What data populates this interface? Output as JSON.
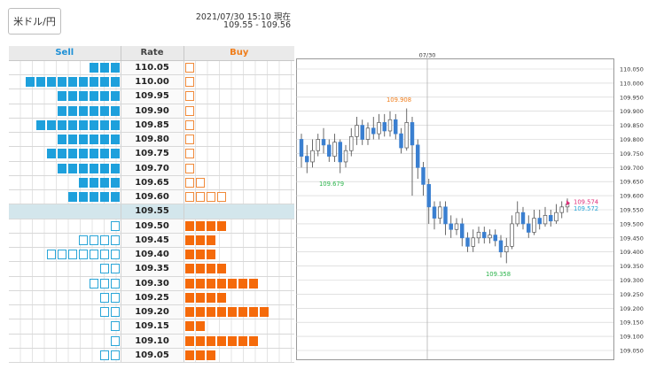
{
  "pair_button": "米ドル/円",
  "timestamp": "2021/07/30 15:10 現在",
  "bid_ask": "109.55 - 109.56",
  "order_book": {
    "headers": {
      "sell": "Sell",
      "rate": "Rate",
      "buy": "Buy"
    },
    "current_rate": "109.55",
    "rows": [
      {
        "rate": "110.05",
        "sell": {
          "fill": 3,
          "empty": 0
        },
        "buy": {
          "fill": 0,
          "empty": 1
        }
      },
      {
        "rate": "110.00",
        "sell": {
          "fill": 9,
          "empty": 0
        },
        "buy": {
          "fill": 0,
          "empty": 1
        }
      },
      {
        "rate": "109.95",
        "sell": {
          "fill": 6,
          "empty": 0
        },
        "buy": {
          "fill": 0,
          "empty": 1
        }
      },
      {
        "rate": "109.90",
        "sell": {
          "fill": 6,
          "empty": 0
        },
        "buy": {
          "fill": 0,
          "empty": 1
        }
      },
      {
        "rate": "109.85",
        "sell": {
          "fill": 8,
          "empty": 0
        },
        "buy": {
          "fill": 0,
          "empty": 1
        }
      },
      {
        "rate": "109.80",
        "sell": {
          "fill": 6,
          "empty": 0
        },
        "buy": {
          "fill": 0,
          "empty": 1
        }
      },
      {
        "rate": "109.75",
        "sell": {
          "fill": 7,
          "empty": 0
        },
        "buy": {
          "fill": 0,
          "empty": 1
        }
      },
      {
        "rate": "109.70",
        "sell": {
          "fill": 6,
          "empty": 0
        },
        "buy": {
          "fill": 0,
          "empty": 1
        }
      },
      {
        "rate": "109.65",
        "sell": {
          "fill": 4,
          "empty": 0
        },
        "buy": {
          "fill": 0,
          "empty": 2
        }
      },
      {
        "rate": "109.60",
        "sell": {
          "fill": 5,
          "empty": 0
        },
        "buy": {
          "fill": 0,
          "empty": 4
        }
      },
      {
        "rate": "109.55",
        "sell": {
          "fill": 0,
          "empty": 0
        },
        "buy": {
          "fill": 0,
          "empty": 0
        }
      },
      {
        "rate": "109.50",
        "sell": {
          "fill": 0,
          "empty": 1
        },
        "buy": {
          "fill": 4,
          "empty": 0
        }
      },
      {
        "rate": "109.45",
        "sell": {
          "fill": 0,
          "empty": 4
        },
        "buy": {
          "fill": 3,
          "empty": 0
        }
      },
      {
        "rate": "109.40",
        "sell": {
          "fill": 0,
          "empty": 7
        },
        "buy": {
          "fill": 3,
          "empty": 0
        }
      },
      {
        "rate": "109.35",
        "sell": {
          "fill": 0,
          "empty": 2
        },
        "buy": {
          "fill": 4,
          "empty": 0
        }
      },
      {
        "rate": "109.30",
        "sell": {
          "fill": 0,
          "empty": 3
        },
        "buy": {
          "fill": 7,
          "empty": 0
        }
      },
      {
        "rate": "109.25",
        "sell": {
          "fill": 0,
          "empty": 2
        },
        "buy": {
          "fill": 4,
          "empty": 0
        }
      },
      {
        "rate": "109.20",
        "sell": {
          "fill": 0,
          "empty": 2
        },
        "buy": {
          "fill": 8,
          "empty": 0
        }
      },
      {
        "rate": "109.15",
        "sell": {
          "fill": 0,
          "empty": 1
        },
        "buy": {
          "fill": 2,
          "empty": 0
        }
      },
      {
        "rate": "109.10",
        "sell": {
          "fill": 0,
          "empty": 1
        },
        "buy": {
          "fill": 7,
          "empty": 0
        }
      },
      {
        "rate": "109.05",
        "sell": {
          "fill": 0,
          "empty": 2
        },
        "buy": {
          "fill": 3,
          "empty": 0
        }
      }
    ],
    "colors": {
      "sell": "#1ea0dc",
      "buy": "#f56a0a",
      "current_row": "#d3e6ec"
    }
  },
  "chart_data": {
    "type": "candlestick",
    "title": "",
    "x_date_label": "07/30",
    "ylim": [
      109.05,
      110.05
    ],
    "y_ticks": [
      "110.050",
      "110.000",
      "109.950",
      "109.900",
      "109.850",
      "109.800",
      "109.750",
      "109.700",
      "109.650",
      "109.600",
      "109.550",
      "109.500",
      "109.450",
      "109.400",
      "109.350",
      "109.300",
      "109.250",
      "109.200",
      "109.150",
      "109.100",
      "109.050"
    ],
    "annotations": [
      {
        "label": "109.908",
        "value": 109.908,
        "color": "#f07d1a"
      },
      {
        "label": "109.679",
        "value": 109.679,
        "color": "#2ab34a"
      },
      {
        "label": "109.358",
        "value": 109.358,
        "color": "#2ab34a"
      },
      {
        "label": "109.574",
        "value": 109.574,
        "color": "#e0307a"
      },
      {
        "label": "109.572",
        "value": 109.572,
        "color": "#2aa6d8"
      }
    ],
    "colors": {
      "up": "#ffffff",
      "down": "#3a7fd0",
      "wick": "#444444",
      "grid": "#cfcfcf"
    },
    "candles": [
      [
        109.8,
        109.74,
        109.82,
        109.7
      ],
      [
        109.74,
        109.72,
        109.78,
        109.68
      ],
      [
        109.72,
        109.76,
        109.8,
        109.7
      ],
      [
        109.76,
        109.8,
        109.82,
        109.74
      ],
      [
        109.8,
        109.78,
        109.84,
        109.75
      ],
      [
        109.78,
        109.74,
        109.8,
        109.72
      ],
      [
        109.74,
        109.79,
        109.82,
        109.72
      ],
      [
        109.79,
        109.72,
        109.8,
        109.68
      ],
      [
        109.72,
        109.76,
        109.78,
        109.7
      ],
      [
        109.76,
        109.81,
        109.84,
        109.74
      ],
      [
        109.81,
        109.85,
        109.88,
        109.78
      ],
      [
        109.85,
        109.8,
        109.87,
        109.78
      ],
      [
        109.8,
        109.84,
        109.86,
        109.78
      ],
      [
        109.84,
        109.82,
        109.88,
        109.8
      ],
      [
        109.82,
        109.86,
        109.89,
        109.8
      ],
      [
        109.86,
        109.83,
        109.89,
        109.81
      ],
      [
        109.83,
        109.87,
        109.9,
        109.81
      ],
      [
        109.87,
        109.82,
        109.89,
        109.8
      ],
      [
        109.82,
        109.77,
        109.84,
        109.75
      ],
      [
        109.77,
        109.86,
        109.91,
        109.76
      ],
      [
        109.86,
        109.78,
        109.88,
        109.6
      ],
      [
        109.78,
        109.7,
        109.8,
        109.66
      ],
      [
        109.7,
        109.64,
        109.72,
        109.6
      ],
      [
        109.64,
        109.56,
        109.66,
        109.5
      ],
      [
        109.56,
        109.52,
        109.58,
        109.48
      ],
      [
        109.52,
        109.56,
        109.58,
        109.5
      ],
      [
        109.56,
        109.5,
        109.58,
        109.46
      ],
      [
        109.5,
        109.48,
        109.53,
        109.45
      ],
      [
        109.48,
        109.5,
        109.52,
        109.46
      ],
      [
        109.5,
        109.45,
        109.52,
        109.42
      ],
      [
        109.45,
        109.42,
        109.47,
        109.4
      ],
      [
        109.42,
        109.45,
        109.48,
        109.4
      ],
      [
        109.45,
        109.47,
        109.49,
        109.43
      ],
      [
        109.47,
        109.45,
        109.49,
        109.43
      ],
      [
        109.45,
        109.46,
        109.48,
        109.43
      ],
      [
        109.46,
        109.44,
        109.48,
        109.42
      ],
      [
        109.44,
        109.4,
        109.46,
        109.38
      ],
      [
        109.4,
        109.42,
        109.45,
        109.36
      ],
      [
        109.42,
        109.5,
        109.53,
        109.41
      ],
      [
        109.5,
        109.54,
        109.58,
        109.49
      ],
      [
        109.54,
        109.5,
        109.56,
        109.48
      ],
      [
        109.5,
        109.47,
        109.53,
        109.45
      ],
      [
        109.47,
        109.52,
        109.55,
        109.46
      ],
      [
        109.52,
        109.5,
        109.55,
        109.48
      ],
      [
        109.5,
        109.53,
        109.56,
        109.49
      ],
      [
        109.53,
        109.51,
        109.55,
        109.49
      ],
      [
        109.51,
        109.54,
        109.57,
        109.5
      ],
      [
        109.54,
        109.56,
        109.58,
        109.52
      ],
      [
        109.56,
        109.57,
        109.59,
        109.54
      ]
    ]
  }
}
